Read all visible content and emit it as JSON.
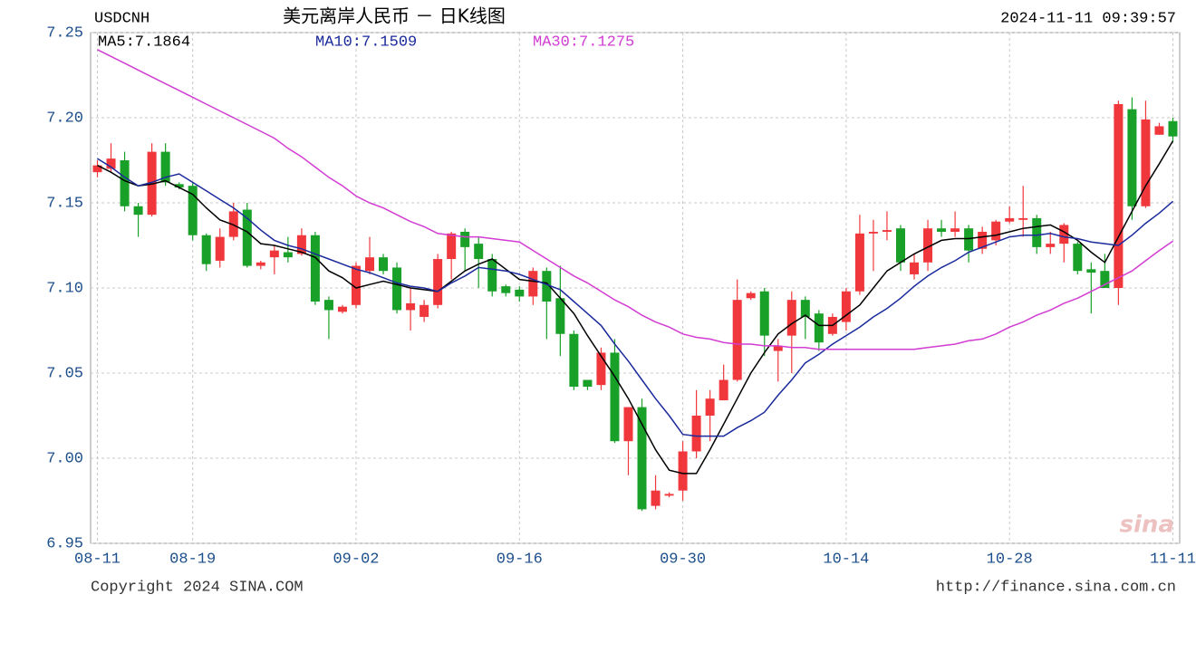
{
  "chart_data": {
    "type": "candlestick",
    "symbol": "USDCNH",
    "title": "美元离岸人民币 － 日K线图",
    "timestamp": "2024-11-11 09:39:57",
    "copyright": "Copyright 2024 SINA.COM",
    "url": "http://finance.sina.com.cn",
    "watermark": "sina",
    "categories": [
      "08-11",
      null,
      null,
      null,
      null,
      null,
      null,
      "08-19",
      null,
      null,
      null,
      null,
      null,
      null,
      null,
      null,
      null,
      null,
      null,
      "09-02",
      null,
      null,
      null,
      null,
      null,
      null,
      null,
      null,
      null,
      null,
      null,
      "09-16",
      null,
      null,
      null,
      null,
      null,
      null,
      null,
      null,
      null,
      null,
      null,
      "09-30",
      null,
      null,
      null,
      null,
      null,
      null,
      null,
      null,
      null,
      null,
      null,
      "10-14",
      null,
      null,
      null,
      null,
      null,
      null,
      null,
      null,
      null,
      null,
      null,
      "10-28",
      null,
      null,
      null,
      null,
      null,
      null,
      null,
      null,
      null,
      null,
      null,
      "11-11"
    ],
    "open": [
      7.168,
      7.17,
      7.175,
      7.148,
      7.143,
      7.18,
      7.161,
      7.16,
      7.131,
      7.116,
      7.13,
      7.146,
      7.113,
      7.118,
      7.121,
      7.12,
      7.131,
      7.093,
      7.086,
      7.09,
      7.11,
      7.118,
      7.112,
      7.087,
      7.083,
      7.09,
      7.117,
      7.133,
      7.126,
      7.117,
      7.101,
      7.099,
      7.095,
      7.11,
      7.094,
      7.073,
      7.046,
      7.043,
      7.062,
      7.01,
      7.03,
      6.972,
      6.978,
      6.981,
      7.004,
      7.025,
      7.034,
      7.046,
      7.094,
      7.098,
      7.063,
      7.072,
      7.093,
      7.085,
      7.073,
      7.08,
      7.098,
      7.132,
      7.133,
      7.135,
      7.108,
      7.115,
      7.135,
      7.133,
      7.135,
      7.123,
      7.128,
      7.139,
      7.14,
      7.141,
      7.124,
      7.126,
      7.126,
      7.111,
      7.11,
      7.1,
      7.205,
      7.148,
      7.19,
      7.198
    ],
    "high": [
      7.175,
      7.185,
      7.18,
      7.15,
      7.185,
      7.185,
      7.162,
      7.162,
      7.132,
      7.135,
      7.15,
      7.15,
      7.116,
      7.125,
      7.13,
      7.135,
      7.133,
      7.095,
      7.09,
      7.115,
      7.13,
      7.12,
      7.115,
      7.1,
      7.093,
      7.12,
      7.133,
      7.135,
      7.13,
      7.12,
      7.102,
      7.101,
      7.112,
      7.112,
      7.113,
      7.075,
      7.046,
      7.065,
      7.07,
      7.03,
      7.035,
      6.99,
      6.98,
      7.01,
      7.04,
      7.04,
      7.055,
      7.105,
      7.098,
      7.1,
      7.07,
      7.098,
      7.095,
      7.087,
      7.085,
      7.1,
      7.143,
      7.14,
      7.145,
      7.137,
      7.12,
      7.14,
      7.14,
      7.145,
      7.137,
      7.136,
      7.14,
      7.148,
      7.16,
      7.143,
      7.133,
      7.138,
      7.127,
      7.115,
      7.12,
      7.21,
      7.212,
      7.21,
      7.197,
      7.2
    ],
    "low": [
      7.165,
      7.168,
      7.145,
      7.13,
      7.142,
      7.16,
      7.158,
      7.128,
      7.11,
      7.112,
      7.128,
      7.112,
      7.111,
      7.108,
      7.115,
      7.119,
      7.09,
      7.07,
      7.085,
      7.088,
      7.108,
      7.108,
      7.085,
      7.075,
      7.08,
      7.088,
      7.105,
      7.11,
      7.1,
      7.095,
      7.095,
      7.092,
      7.09,
      7.07,
      7.06,
      7.04,
      7.04,
      7.04,
      7.009,
      6.99,
      6.969,
      6.97,
      6.977,
      6.975,
      7.0,
      7.01,
      7.034,
      7.045,
      7.093,
      7.06,
      7.045,
      7.05,
      7.07,
      7.063,
      7.072,
      7.075,
      7.096,
      7.11,
      7.128,
      7.11,
      7.105,
      7.11,
      7.13,
      7.13,
      7.115,
      7.12,
      7.125,
      7.138,
      7.13,
      7.12,
      7.12,
      7.115,
      7.108,
      7.085,
      7.1,
      7.09,
      7.14,
      7.147,
      7.19,
      7.186
    ],
    "close": [
      7.172,
      7.176,
      7.148,
      7.143,
      7.18,
      7.162,
      7.159,
      7.131,
      7.114,
      7.13,
      7.145,
      7.113,
      7.115,
      7.122,
      7.118,
      7.131,
      7.092,
      7.087,
      7.089,
      7.113,
      7.118,
      7.11,
      7.087,
      7.091,
      7.09,
      7.117,
      7.132,
      7.124,
      7.117,
      7.098,
      7.097,
      7.095,
      7.11,
      7.092,
      7.073,
      7.042,
      7.042,
      7.062,
      7.01,
      7.03,
      6.97,
      6.981,
      6.979,
      7.004,
      7.025,
      7.035,
      7.046,
      7.093,
      7.097,
      7.072,
      7.066,
      7.093,
      7.083,
      7.068,
      7.083,
      7.098,
      7.132,
      7.133,
      7.134,
      7.115,
      7.115,
      7.135,
      7.133,
      7.135,
      7.122,
      7.133,
      7.139,
      7.141,
      7.141,
      7.124,
      7.126,
      7.137,
      7.11,
      7.109,
      7.1,
      7.208,
      7.148,
      7.199,
      7.195,
      7.189
    ],
    "up_color": "#f0383c",
    "down_color": "#18a028",
    "series": [
      {
        "name": "MA5:7.1864",
        "color": "#000000",
        "values": [
          7.172,
          7.168,
          7.163,
          7.16,
          7.161,
          7.163,
          7.159,
          7.155,
          7.147,
          7.14,
          7.137,
          7.133,
          7.126,
          7.125,
          7.123,
          7.121,
          7.118,
          7.11,
          7.106,
          7.1,
          7.102,
          7.104,
          7.102,
          7.1,
          7.099,
          7.098,
          7.104,
          7.11,
          7.114,
          7.117,
          7.111,
          7.105,
          7.104,
          7.103,
          7.094,
          7.085,
          7.072,
          7.06,
          7.048,
          7.035,
          7.02,
          7.005,
          6.993,
          6.991,
          6.991,
          7.005,
          7.02,
          7.035,
          7.05,
          7.062,
          7.073,
          7.079,
          7.084,
          7.078,
          7.078,
          7.084,
          7.09,
          7.1,
          7.11,
          7.115,
          7.12,
          7.124,
          7.128,
          7.129,
          7.129,
          7.13,
          7.131,
          7.133,
          7.135,
          7.136,
          7.137,
          7.133,
          7.128,
          7.121,
          7.115,
          7.13,
          7.145,
          7.16,
          7.173,
          7.1864
        ]
      },
      {
        "name": "MA10:7.1509",
        "color": "#1a2a9c",
        "values": [
          7.176,
          7.171,
          7.165,
          7.16,
          7.162,
          7.165,
          7.167,
          7.162,
          7.157,
          7.152,
          7.147,
          7.141,
          7.134,
          7.128,
          7.125,
          7.123,
          7.12,
          7.117,
          7.114,
          7.111,
          7.109,
          7.106,
          7.103,
          7.101,
          7.1,
          7.098,
          7.103,
          7.107,
          7.112,
          7.111,
          7.11,
          7.108,
          7.105,
          7.102,
          7.099,
          7.092,
          7.085,
          7.078,
          7.067,
          7.057,
          7.046,
          7.035,
          7.025,
          7.014,
          7.013,
          7.013,
          7.013,
          7.018,
          7.022,
          7.027,
          7.037,
          7.046,
          7.056,
          7.061,
          7.067,
          7.072,
          7.077,
          7.083,
          7.088,
          7.094,
          7.101,
          7.107,
          7.112,
          7.116,
          7.121,
          7.124,
          7.127,
          7.13,
          7.131,
          7.131,
          7.132,
          7.13,
          7.129,
          7.127,
          7.126,
          7.125,
          7.131,
          7.138,
          7.144,
          7.1509
        ]
      },
      {
        "name": "MA30:7.1275",
        "color": "#d23cd2",
        "values": [
          7.24,
          7.236,
          7.232,
          7.228,
          7.224,
          7.22,
          7.216,
          7.212,
          7.208,
          7.204,
          7.2,
          7.196,
          7.192,
          7.188,
          7.182,
          7.177,
          7.171,
          7.165,
          7.16,
          7.154,
          7.15,
          7.147,
          7.143,
          7.139,
          7.136,
          7.132,
          7.131,
          7.13,
          7.13,
          7.129,
          7.128,
          7.127,
          7.122,
          7.117,
          7.112,
          7.107,
          7.103,
          7.098,
          7.093,
          7.089,
          7.084,
          7.08,
          7.077,
          7.073,
          7.071,
          7.07,
          7.068,
          7.067,
          7.067,
          7.066,
          7.066,
          7.065,
          7.065,
          7.064,
          7.064,
          7.064,
          7.064,
          7.064,
          7.064,
          7.064,
          7.064,
          7.065,
          7.066,
          7.067,
          7.069,
          7.07,
          7.073,
          7.077,
          7.08,
          7.084,
          7.087,
          7.091,
          7.094,
          7.098,
          7.102,
          7.106,
          7.11,
          7.116,
          7.122,
          7.1275
        ]
      }
    ],
    "ylim": [
      6.95,
      7.25
    ],
    "yticks": [
      6.95,
      {
        "value": 7,
        "label": "7.00"
      },
      7.05,
      {
        "value": 7.1,
        "label": "7.10"
      },
      7.15,
      {
        "value": 7.2,
        "label": "7.20"
      },
      7.25
    ],
    "grid": true
  }
}
